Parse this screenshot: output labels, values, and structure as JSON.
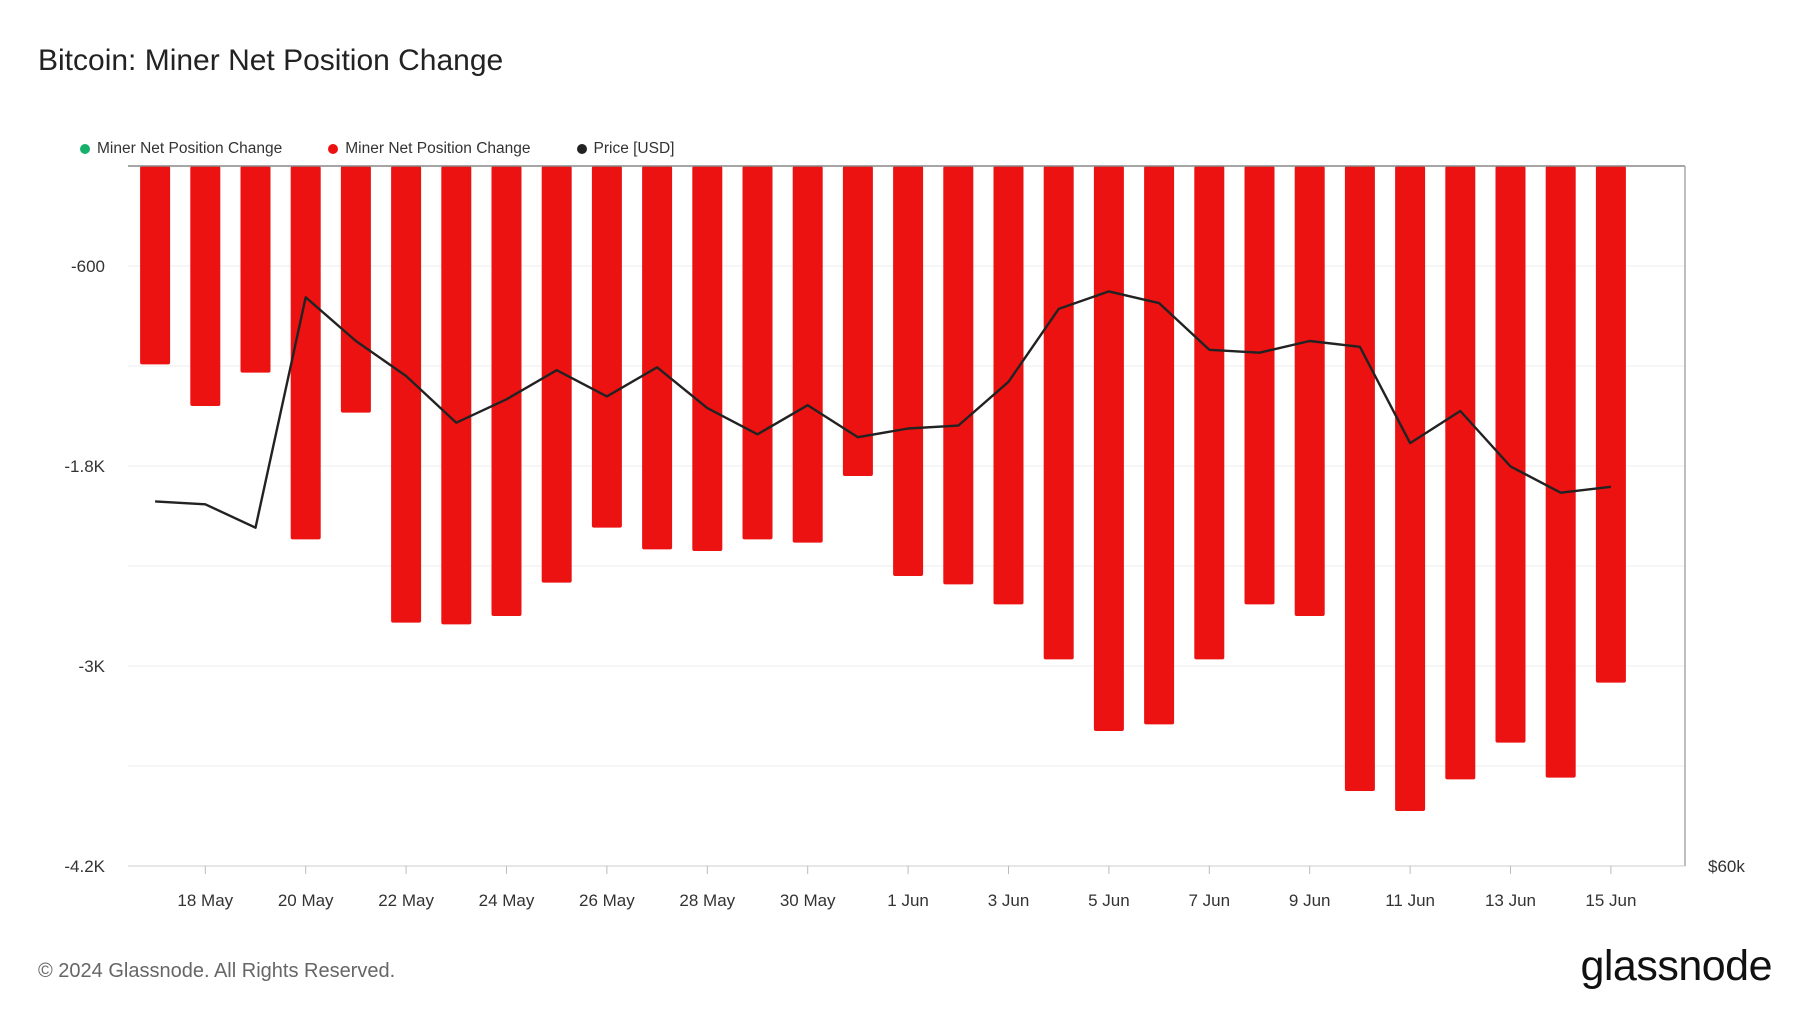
{
  "title": "Bitcoin: Miner Net Position Change",
  "legend": [
    {
      "label": "Miner Net Position Change",
      "color": "#15b06b"
    },
    {
      "label": "Miner Net Position Change",
      "color": "#ec1212"
    },
    {
      "label": "Price [USD]",
      "color": "#222222"
    }
  ],
  "footer": {
    "copyright": "© 2024 Glassnode. All Rights Reserved.",
    "brand": "glassnode"
  },
  "chart_data": {
    "type": "bar",
    "title": "Bitcoin: Miner Net Position Change",
    "categories": [
      "17 May",
      "18 May",
      "19 May",
      "20 May",
      "21 May",
      "22 May",
      "23 May",
      "24 May",
      "25 May",
      "26 May",
      "27 May",
      "28 May",
      "29 May",
      "30 May",
      "31 May",
      "1 Jun",
      "2 Jun",
      "3 Jun",
      "4 Jun",
      "5 Jun",
      "6 Jun",
      "7 Jun",
      "8 Jun",
      "9 Jun",
      "10 Jun",
      "11 Jun",
      "12 Jun",
      "13 Jun",
      "14 Jun",
      "15 Jun"
    ],
    "x_tick_labels": [
      "18 May",
      "20 May",
      "22 May",
      "24 May",
      "26 May",
      "28 May",
      "30 May",
      "1 Jun",
      "3 Jun",
      "5 Jun",
      "7 Jun",
      "9 Jun",
      "11 Jun",
      "13 Jun",
      "15 Jun"
    ],
    "y_ticks": [
      {
        "value": -600,
        "label": "-600"
      },
      {
        "value": -1800,
        "label": "-1.8K"
      },
      {
        "value": -3000,
        "label": "-3K"
      },
      {
        "value": -4200,
        "label": "-4.2K"
      }
    ],
    "ylim": [
      -4200,
      50
    ],
    "right_axis_label": "$60k",
    "series": [
      {
        "name": "Miner Net Position Change",
        "type": "bar",
        "color": "#ec1212",
        "values": [
          -1190,
          -1440,
          -1240,
          -2240,
          -1480,
          -2740,
          -2750,
          -2700,
          -2500,
          -2170,
          -2300,
          -2310,
          -2240,
          -2260,
          -1860,
          -2460,
          -2510,
          -2630,
          -2960,
          -3390,
          -3350,
          -2960,
          -2630,
          -2700,
          -3750,
          -3870,
          -3680,
          -3460,
          -3670,
          -3100
        ]
      },
      {
        "name": "Price [USD]",
        "type": "line",
        "color": "#222222",
        "values": [
          66250,
          66200,
          65800,
          69750,
          69000,
          68400,
          67600,
          68000,
          68500,
          68050,
          68550,
          67850,
          67400,
          67900,
          67350,
          67500,
          67550,
          68300,
          69550,
          69850,
          69650,
          68850,
          68800,
          69000,
          68900,
          67250,
          67800,
          66850,
          66400,
          66500
        ]
      }
    ],
    "price_range": [
      60000,
      72000
    ]
  }
}
